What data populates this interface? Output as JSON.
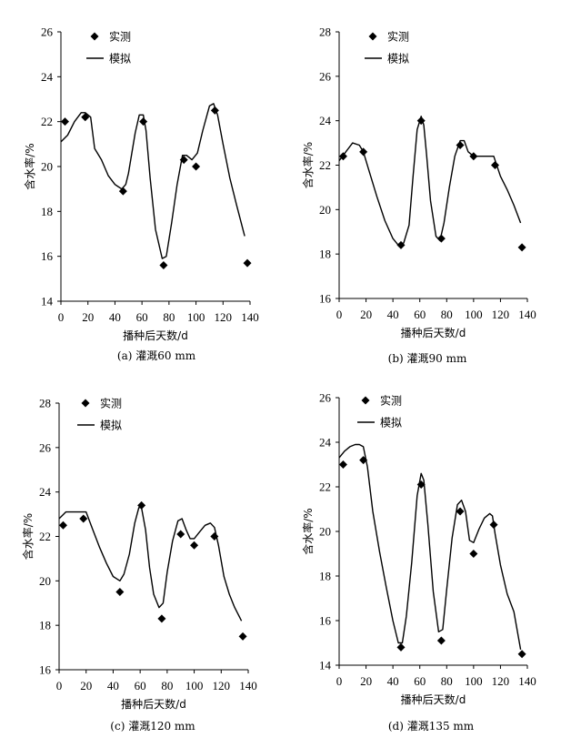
{
  "chart_data": [
    {
      "type": "scatter",
      "caption": "(a) 灌溉60 mm",
      "xlabel": "播种后天数/d",
      "ylabel": "含水率/%",
      "xlim": [
        0,
        140
      ],
      "ylim": [
        14,
        26
      ],
      "xticks": [
        0,
        20,
        40,
        60,
        80,
        100,
        120,
        140
      ],
      "yticks": [
        14,
        16,
        18,
        20,
        22,
        24,
        26
      ],
      "legend_position": "top-left",
      "series": [
        {
          "name": "实测",
          "style": "markers",
          "x": [
            3,
            18,
            46,
            61,
            76,
            91,
            100,
            114,
            138
          ],
          "y": [
            22.0,
            22.2,
            18.9,
            22.0,
            15.6,
            20.3,
            20.0,
            22.5,
            15.7
          ]
        },
        {
          "name": "模拟",
          "style": "line",
          "x": [
            0,
            5,
            10,
            15,
            18,
            22,
            25,
            30,
            35,
            40,
            45,
            48,
            50,
            55,
            58,
            61,
            63,
            66,
            70,
            75,
            78,
            82,
            86,
            90,
            93,
            97,
            101,
            105,
            110,
            113,
            116,
            120,
            125,
            130,
            136
          ],
          "y": [
            21.1,
            21.4,
            22.0,
            22.4,
            22.4,
            22.2,
            20.8,
            20.3,
            19.6,
            19.2,
            19.0,
            19.2,
            19.7,
            21.5,
            22.3,
            22.3,
            21.6,
            19.5,
            17.2,
            15.9,
            16.0,
            17.5,
            19.2,
            20.5,
            20.5,
            20.3,
            20.6,
            21.6,
            22.7,
            22.8,
            22.3,
            21.0,
            19.5,
            18.3,
            16.9
          ]
        }
      ]
    },
    {
      "type": "scatter",
      "caption": "(b) 灌溉90 mm",
      "xlabel": "播种后天数/d",
      "ylabel": "含水率/%",
      "xlim": [
        0,
        140
      ],
      "ylim": [
        16,
        28
      ],
      "xticks": [
        0,
        20,
        40,
        60,
        80,
        100,
        120,
        140
      ],
      "yticks": [
        16,
        18,
        20,
        22,
        24,
        26,
        28
      ],
      "legend_position": "top-center",
      "series": [
        {
          "name": "实测",
          "style": "markers",
          "x": [
            3,
            18,
            46,
            61,
            76,
            90,
            100,
            116,
            136
          ],
          "y": [
            22.4,
            22.6,
            18.4,
            24.0,
            18.7,
            22.9,
            22.4,
            22.0,
            18.3
          ]
        },
        {
          "name": "模拟",
          "style": "line",
          "x": [
            0,
            5,
            10,
            15,
            18,
            22,
            28,
            34,
            40,
            44,
            48,
            52,
            55,
            58,
            61,
            63,
            65,
            68,
            72,
            75,
            78,
            82,
            86,
            90,
            93,
            96,
            100,
            105,
            110,
            115,
            120,
            125,
            130,
            135
          ],
          "y": [
            22.2,
            22.6,
            23.0,
            22.9,
            22.6,
            21.8,
            20.6,
            19.5,
            18.7,
            18.4,
            18.5,
            19.3,
            21.5,
            23.6,
            24.2,
            23.8,
            22.5,
            20.4,
            18.8,
            18.6,
            19.4,
            21.0,
            22.4,
            23.1,
            23.1,
            22.6,
            22.4,
            22.4,
            22.4,
            22.4,
            21.5,
            20.9,
            20.2,
            19.4
          ]
        }
      ]
    },
    {
      "type": "scatter",
      "caption": "(c) 灌溉120 mm",
      "xlabel": "播种后天数/d",
      "ylabel": "含水率/%",
      "xlim": [
        0,
        140
      ],
      "ylim": [
        16,
        28
      ],
      "xticks": [
        0,
        20,
        40,
        60,
        80,
        100,
        120,
        140
      ],
      "yticks": [
        16,
        18,
        20,
        22,
        24,
        26,
        28
      ],
      "legend_position": "top-left",
      "series": [
        {
          "name": "实测",
          "style": "markers",
          "x": [
            3,
            18,
            45,
            61,
            76,
            90,
            100,
            115,
            136
          ],
          "y": [
            22.5,
            22.8,
            19.5,
            23.4,
            18.3,
            22.1,
            21.6,
            22.0,
            17.5
          ]
        },
        {
          "name": "模拟",
          "style": "line",
          "x": [
            0,
            5,
            10,
            15,
            20,
            25,
            30,
            35,
            40,
            45,
            48,
            52,
            56,
            59,
            61,
            64,
            67,
            70,
            74,
            77,
            80,
            84,
            88,
            91,
            94,
            97,
            100,
            104,
            108,
            112,
            115,
            118,
            122,
            126,
            130,
            135
          ],
          "y": [
            22.8,
            23.1,
            23.1,
            23.1,
            23.1,
            22.3,
            21.5,
            20.8,
            20.2,
            20.0,
            20.3,
            21.2,
            22.6,
            23.3,
            23.3,
            22.3,
            20.6,
            19.4,
            18.8,
            19.0,
            20.4,
            21.8,
            22.7,
            22.8,
            22.3,
            21.9,
            21.9,
            22.2,
            22.5,
            22.6,
            22.4,
            21.6,
            20.2,
            19.4,
            18.8,
            18.2
          ]
        }
      ]
    },
    {
      "type": "scatter",
      "caption": "(d) 灌溉135 mm",
      "xlabel": "播种后天数/d",
      "ylabel": "含水率/%",
      "xlim": [
        0,
        140
      ],
      "ylim": [
        14,
        26
      ],
      "xticks": [
        0,
        20,
        40,
        60,
        80,
        100,
        120,
        140
      ],
      "yticks": [
        14,
        16,
        18,
        20,
        22,
        24,
        26
      ],
      "legend_position": "top-left",
      "series": [
        {
          "name": "实测",
          "style": "markers",
          "x": [
            3,
            18,
            46,
            61,
            76,
            90,
            100,
            115,
            136
          ],
          "y": [
            23.0,
            23.2,
            14.8,
            22.1,
            15.1,
            20.9,
            19.0,
            20.3,
            14.5
          ]
        },
        {
          "name": "模拟",
          "style": "line",
          "x": [
            0,
            4,
            8,
            12,
            15,
            18,
            21,
            25,
            30,
            35,
            40,
            44,
            47,
            50,
            54,
            58,
            61,
            63,
            66,
            70,
            74,
            77,
            80,
            84,
            88,
            91,
            94,
            97,
            100,
            104,
            108,
            112,
            114,
            116,
            120,
            125,
            130,
            135
          ],
          "y": [
            23.3,
            23.6,
            23.8,
            23.9,
            23.9,
            23.8,
            22.9,
            20.9,
            19.1,
            17.5,
            16.0,
            15.0,
            15.0,
            16.2,
            18.6,
            21.6,
            22.6,
            22.3,
            20.3,
            17.3,
            15.5,
            15.6,
            17.4,
            19.7,
            21.2,
            21.4,
            20.9,
            19.6,
            19.5,
            20.1,
            20.6,
            20.8,
            20.7,
            19.9,
            18.5,
            17.2,
            16.4,
            14.7
          ]
        }
      ]
    }
  ]
}
